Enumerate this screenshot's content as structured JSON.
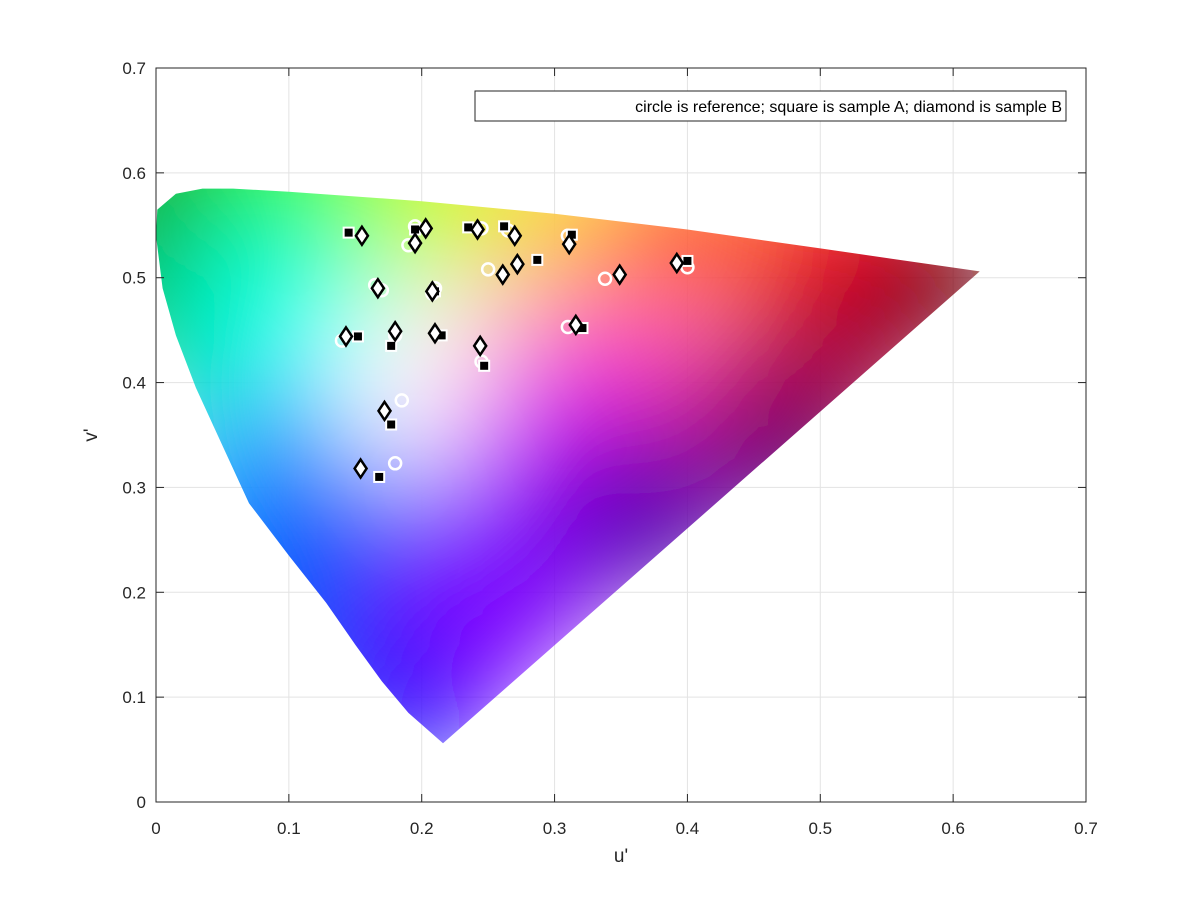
{
  "chart_data": {
    "type": "scatter",
    "title": "",
    "xlabel": "u'",
    "ylabel": "v'",
    "xlim": [
      0,
      0.7
    ],
    "ylim": [
      0,
      0.7
    ],
    "xticks": [
      0,
      0.1,
      0.2,
      0.3,
      0.4,
      0.5,
      0.6,
      0.7
    ],
    "yticks": [
      0,
      0.1,
      0.2,
      0.3,
      0.4,
      0.5,
      0.6,
      0.7
    ],
    "xtick_labels": [
      "0",
      "0.1",
      "0.2",
      "0.3",
      "0.4",
      "0.5",
      "0.6",
      "0.7"
    ],
    "ytick_labels": [
      "0",
      "0.1",
      "0.2",
      "0.3",
      "0.4",
      "0.5",
      "0.6",
      "0.7"
    ],
    "grid": true,
    "legend": {
      "text": "circle is reference; square is sample A; diamond is sample B",
      "location": "top-right"
    },
    "gamut_boundary": [
      [
        0.216,
        0.056
      ],
      [
        0.19,
        0.085
      ],
      [
        0.17,
        0.115
      ],
      [
        0.15,
        0.15
      ],
      [
        0.128,
        0.19
      ],
      [
        0.1,
        0.235
      ],
      [
        0.07,
        0.285
      ],
      [
        0.05,
        0.34
      ],
      [
        0.03,
        0.395
      ],
      [
        0.015,
        0.445
      ],
      [
        0.005,
        0.49
      ],
      [
        0.0,
        0.54
      ],
      [
        0.001,
        0.565
      ],
      [
        0.015,
        0.58
      ],
      [
        0.035,
        0.585
      ],
      [
        0.058,
        0.585
      ],
      [
        0.1,
        0.582
      ],
      [
        0.2,
        0.573
      ],
      [
        0.3,
        0.561
      ],
      [
        0.4,
        0.546
      ],
      [
        0.5,
        0.528
      ],
      [
        0.62,
        0.506
      ],
      [
        0.216,
        0.056
      ]
    ],
    "series": [
      {
        "marker": "circle",
        "points": [
          [
            0.14,
            0.44
          ],
          [
            0.165,
            0.493
          ],
          [
            0.17,
            0.488
          ],
          [
            0.19,
            0.531
          ],
          [
            0.195,
            0.549
          ],
          [
            0.18,
            0.445
          ],
          [
            0.185,
            0.383
          ],
          [
            0.18,
            0.323
          ],
          [
            0.245,
            0.547
          ],
          [
            0.25,
            0.508
          ],
          [
            0.245,
            0.42
          ],
          [
            0.31,
            0.54
          ],
          [
            0.31,
            0.453
          ],
          [
            0.338,
            0.499
          ],
          [
            0.4,
            0.51
          ],
          [
            0.208,
            0.485
          ],
          [
            0.21,
            0.49
          ],
          [
            0.265,
            0.545
          ]
        ]
      },
      {
        "marker": "square",
        "points": [
          [
            0.145,
            0.543
          ],
          [
            0.195,
            0.546
          ],
          [
            0.235,
            0.548
          ],
          [
            0.262,
            0.549
          ],
          [
            0.287,
            0.517
          ],
          [
            0.313,
            0.541
          ],
          [
            0.4,
            0.516
          ],
          [
            0.152,
            0.444
          ],
          [
            0.177,
            0.435
          ],
          [
            0.215,
            0.445
          ],
          [
            0.177,
            0.36
          ],
          [
            0.168,
            0.31
          ],
          [
            0.247,
            0.416
          ],
          [
            0.321,
            0.452
          ],
          [
            0.21,
            0.487
          ]
        ]
      },
      {
        "marker": "diamond",
        "points": [
          [
            0.155,
            0.54
          ],
          [
            0.203,
            0.547
          ],
          [
            0.242,
            0.546
          ],
          [
            0.27,
            0.54
          ],
          [
            0.195,
            0.533
          ],
          [
            0.311,
            0.532
          ],
          [
            0.272,
            0.513
          ],
          [
            0.261,
            0.503
          ],
          [
            0.167,
            0.49
          ],
          [
            0.208,
            0.487
          ],
          [
            0.349,
            0.503
          ],
          [
            0.392,
            0.514
          ],
          [
            0.143,
            0.444
          ],
          [
            0.18,
            0.449
          ],
          [
            0.21,
            0.447
          ],
          [
            0.244,
            0.435
          ],
          [
            0.316,
            0.455
          ],
          [
            0.172,
            0.373
          ],
          [
            0.154,
            0.318
          ]
        ]
      }
    ]
  }
}
